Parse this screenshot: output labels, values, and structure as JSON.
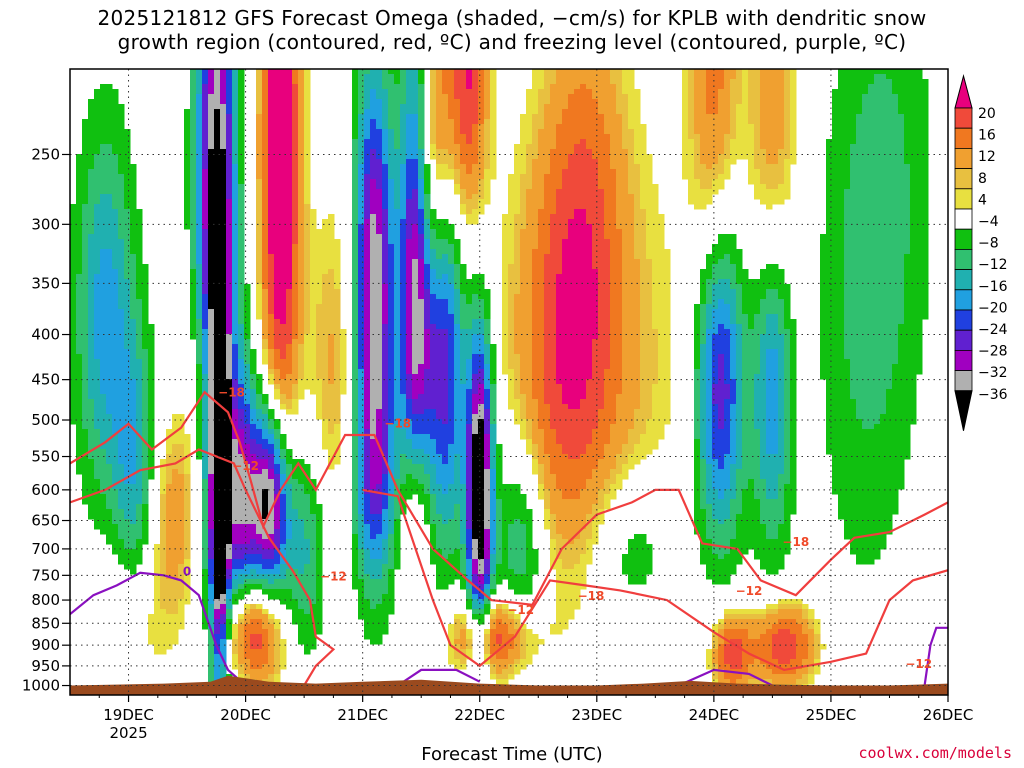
{
  "chart_data": {
    "type": "heatmap",
    "title": "2025121812 GFS Forecast Omega (shaded, −cm/s) for KPLB with dendritic snow\ngrowth region (contoured, red, ºC) and freezing level (contoured, purple, ºC)",
    "xlabel": "Forecast Time (UTC)",
    "x_ticks": [
      "19DEC",
      "20DEC",
      "21DEC",
      "22DEC",
      "23DEC",
      "24DEC",
      "25DEC",
      "26DEC"
    ],
    "x_year": "2025",
    "y_ticks": [
      "250",
      "300",
      "350",
      "400",
      "450",
      "500",
      "550",
      "600",
      "650",
      "700",
      "750",
      "800",
      "850",
      "900",
      "950",
      "1000"
    ],
    "y_ticks_values": [
      250,
      300,
      350,
      400,
      450,
      500,
      550,
      600,
      650,
      700,
      750,
      800,
      850,
      900,
      950,
      1000
    ],
    "xlim_days": [
      "18DEC 12Z",
      "26DEC 00Z"
    ],
    "ylim": [
      200,
      1025
    ],
    "y_scale": "log-pressure",
    "grid": true,
    "colorbar": {
      "labels": [
        "20",
        "16",
        "12",
        "8",
        "4",
        "−4",
        "−8",
        "−12",
        "−16",
        "−20",
        "−24",
        "−28",
        "−32",
        "−36"
      ],
      "colors": [
        "#e8007d",
        "#f04a3a",
        "#f07820",
        "#f0a030",
        "#e8c040",
        "#e8e040",
        "#ffffff",
        "#10c010",
        "#30c070",
        "#20b0b0",
        "#20a0e0",
        "#2040e0",
        "#6020d0",
        "#a000c0",
        "#b0b0b0",
        "#000000"
      ]
    },
    "contour_labels": [
      {
        "text": "−18",
        "t": 0.88,
        "p": 470
      },
      {
        "text": "−12",
        "t": 1.0,
        "p": 570
      },
      {
        "text": "−12",
        "t": 1.75,
        "p": 760
      },
      {
        "text": "−18",
        "t": 2.3,
        "p": 510
      },
      {
        "text": "−12",
        "t": 3.35,
        "p": 830
      },
      {
        "text": "−18",
        "t": 3.95,
        "p": 800
      },
      {
        "text": "−18",
        "t": 5.7,
        "p": 695
      },
      {
        "text": "−12",
        "t": 5.3,
        "p": 790
      },
      {
        "text": "−18",
        "t": 7.55,
        "p": 650
      },
      {
        "text": "−12",
        "t": 7.5,
        "p": 730
      },
      {
        "text": "−12",
        "t": 6.75,
        "p": 955
      },
      {
        "text": "0",
        "t": 0.5,
        "p": 750
      }
    ]
  },
  "footer": {
    "credit": "coolwx.com/models"
  }
}
